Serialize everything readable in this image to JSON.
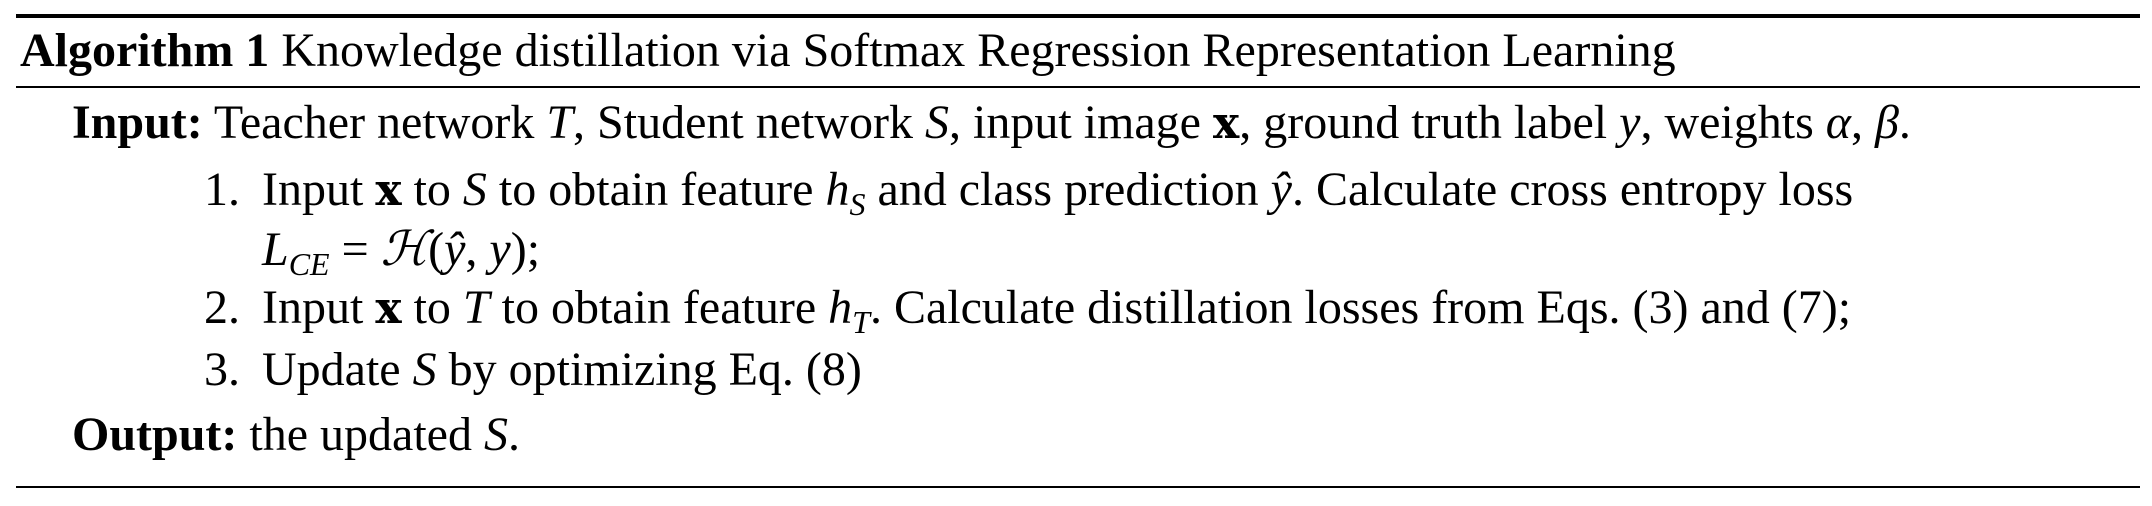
{
  "algorithm": {
    "tag": "Algorithm 1",
    "title": "Knowledge distillation via Softmax Regression Representation Learning"
  },
  "input": {
    "keyword": "Input:",
    "t1": "Teacher network ",
    "T": "T",
    "t2": ", Student network ",
    "S": "S",
    "t3": ", input image ",
    "x": "x",
    "t4": ", ground truth label ",
    "y": "y",
    "t5": ", weights ",
    "alpha": "α",
    "t6": ", ",
    "beta": "β",
    "t7": "."
  },
  "steps": [
    {
      "num": "1.",
      "a": "Input ",
      "x": "x",
      "b": " to ",
      "S": "S",
      "c": " to obtain feature ",
      "h": "h",
      "hsub": "S",
      "d": " and class prediction ",
      "yhat": "ŷ",
      "e": ".  Calculate cross entropy loss",
      "L": "L",
      "Lsub": "CE",
      "f": " = ",
      "H": "ℋ",
      "g": "(",
      "yhat2": "ŷ",
      "i": ", ",
      "y": "y",
      "j": ");"
    },
    {
      "num": "2.",
      "a": "Input ",
      "x": "x",
      "b": " to ",
      "T": "T",
      "c": " to obtain feature ",
      "h": "h",
      "hsub": "T",
      "d": ". Calculate distillation losses from Eqs. (3) and  (7);"
    },
    {
      "num": "3.",
      "a": "Update ",
      "S": "S",
      "b": " by optimizing Eq. (8)"
    }
  ],
  "output": {
    "keyword": "Output:",
    "t1": " the updated ",
    "S": "S",
    "t2": "."
  }
}
